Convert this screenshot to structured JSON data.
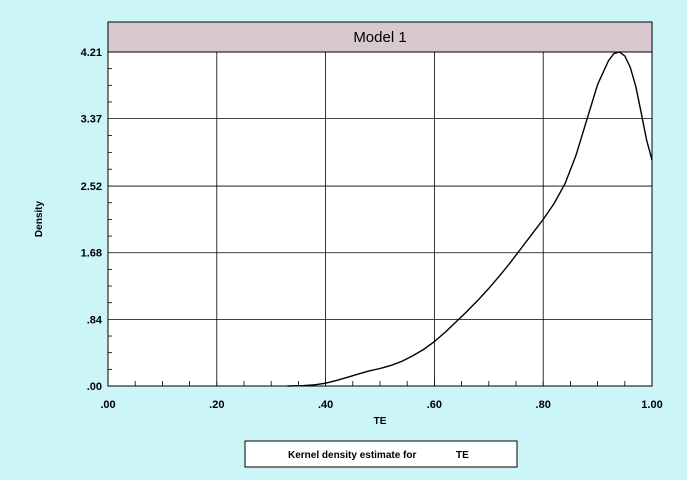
{
  "chart_data": {
    "type": "line",
    "title": "Model 1",
    "xlabel": "TE",
    "ylabel": "Density",
    "xlim": [
      0,
      1
    ],
    "ylim": [
      0,
      4.21
    ],
    "x_ticks": [
      ".00",
      ".20",
      ".40",
      ".60",
      ".80",
      "1.00"
    ],
    "x_tick_values": [
      0,
      0.2,
      0.4,
      0.6,
      0.8,
      1.0
    ],
    "y_ticks": [
      ".00",
      ".84",
      "1.68",
      "2.52",
      "3.37",
      "4.21"
    ],
    "y_tick_values": [
      0,
      0.84,
      1.68,
      2.52,
      3.37,
      4.21
    ],
    "grid": true,
    "legend": {
      "position": "bottom",
      "prefix": "Kernel density estimate for",
      "var": "TE"
    },
    "series": [
      {
        "x": [
          0.33,
          0.36,
          0.38,
          0.4,
          0.42,
          0.44,
          0.46,
          0.48,
          0.5,
          0.52,
          0.54,
          0.56,
          0.58,
          0.6,
          0.62,
          0.64,
          0.66,
          0.68,
          0.7,
          0.72,
          0.74,
          0.76,
          0.78,
          0.8,
          0.82,
          0.84,
          0.86,
          0.88,
          0.9,
          0.92,
          0.93,
          0.94,
          0.95,
          0.96,
          0.97,
          0.98,
          0.99,
          1.0
        ],
        "y": [
          0.0,
          0.005,
          0.015,
          0.035,
          0.07,
          0.11,
          0.15,
          0.19,
          0.22,
          0.26,
          0.31,
          0.38,
          0.46,
          0.56,
          0.68,
          0.81,
          0.94,
          1.08,
          1.23,
          1.39,
          1.56,
          1.74,
          1.92,
          2.1,
          2.3,
          2.55,
          2.9,
          3.35,
          3.8,
          4.1,
          4.19,
          4.21,
          4.16,
          4.02,
          3.78,
          3.45,
          3.1,
          2.85
        ]
      }
    ]
  }
}
